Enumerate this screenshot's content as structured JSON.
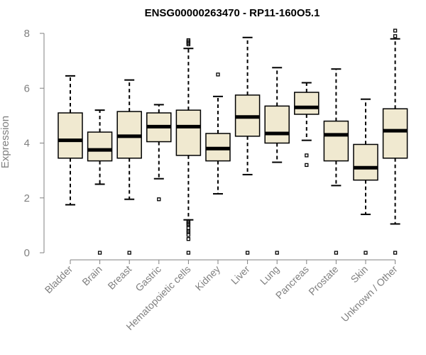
{
  "chart_data": {
    "type": "boxplot",
    "title": "ENSG00000263470 - RP11-160O5.1",
    "ylabel": "Expression",
    "xlabel": "",
    "ylim": [
      0,
      8
    ],
    "yticks": [
      0,
      2,
      4,
      6,
      8
    ],
    "colors": {
      "box_fill": "#f0e9d0",
      "box_stroke": "#000000",
      "axis": "#808080"
    },
    "categories": [
      "Bladder",
      "Brain",
      "Breast",
      "Gastric",
      "Hematopoietic cells",
      "Kidney",
      "Liver",
      "Lung",
      "Pancreas",
      "Prostate",
      "Skin",
      "Unknown / Other"
    ],
    "boxes": [
      {
        "category": "Bladder",
        "whisker_low": 1.75,
        "q1": 3.45,
        "median": 4.1,
        "q3": 5.1,
        "whisker_high": 6.45,
        "outliers": []
      },
      {
        "category": "Brain",
        "whisker_low": 2.5,
        "q1": 3.35,
        "median": 3.75,
        "q3": 4.4,
        "whisker_high": 5.2,
        "outliers": [
          0
        ]
      },
      {
        "category": "Breast",
        "whisker_low": 1.95,
        "q1": 3.45,
        "median": 4.25,
        "q3": 5.15,
        "whisker_high": 6.3,
        "outliers": [
          0
        ]
      },
      {
        "category": "Gastric",
        "whisker_low": 2.7,
        "q1": 4.05,
        "median": 4.6,
        "q3": 5.1,
        "whisker_high": 5.4,
        "outliers": [
          1.95
        ]
      },
      {
        "category": "Hematopoietic cells",
        "whisker_low": 1.2,
        "q1": 3.55,
        "median": 4.6,
        "q3": 5.2,
        "whisker_high": 7.45,
        "outliers": [
          0,
          0.5,
          0.65,
          0.75,
          0.8,
          0.9,
          1.0,
          1.05,
          1.1,
          1.15,
          7.6,
          7.65,
          7.7,
          7.75
        ]
      },
      {
        "category": "Kidney",
        "whisker_low": 2.15,
        "q1": 3.35,
        "median": 3.8,
        "q3": 4.35,
        "whisker_high": 5.7,
        "outliers": [
          6.5
        ]
      },
      {
        "category": "Liver",
        "whisker_low": 2.85,
        "q1": 4.25,
        "median": 4.95,
        "q3": 5.75,
        "whisker_high": 7.85,
        "outliers": [
          0
        ]
      },
      {
        "category": "Lung",
        "whisker_low": 3.3,
        "q1": 4.0,
        "median": 4.35,
        "q3": 5.35,
        "whisker_high": 6.75,
        "outliers": [
          0
        ]
      },
      {
        "category": "Pancreas",
        "whisker_low": 4.1,
        "q1": 5.05,
        "median": 5.3,
        "q3": 5.85,
        "whisker_high": 6.2,
        "outliers": [
          3.2,
          3.55
        ]
      },
      {
        "category": "Prostate",
        "whisker_low": 2.45,
        "q1": 3.35,
        "median": 4.3,
        "q3": 4.8,
        "whisker_high": 6.7,
        "outliers": [
          0
        ]
      },
      {
        "category": "Skin",
        "whisker_low": 1.4,
        "q1": 2.65,
        "median": 3.1,
        "q3": 3.95,
        "whisker_high": 5.6,
        "outliers": [
          0
        ]
      },
      {
        "category": "Unknown / Other",
        "whisker_low": 1.05,
        "q1": 3.45,
        "median": 4.45,
        "q3": 5.25,
        "whisker_high": 7.8,
        "outliers": [
          0,
          7.9,
          8.1
        ]
      }
    ]
  }
}
